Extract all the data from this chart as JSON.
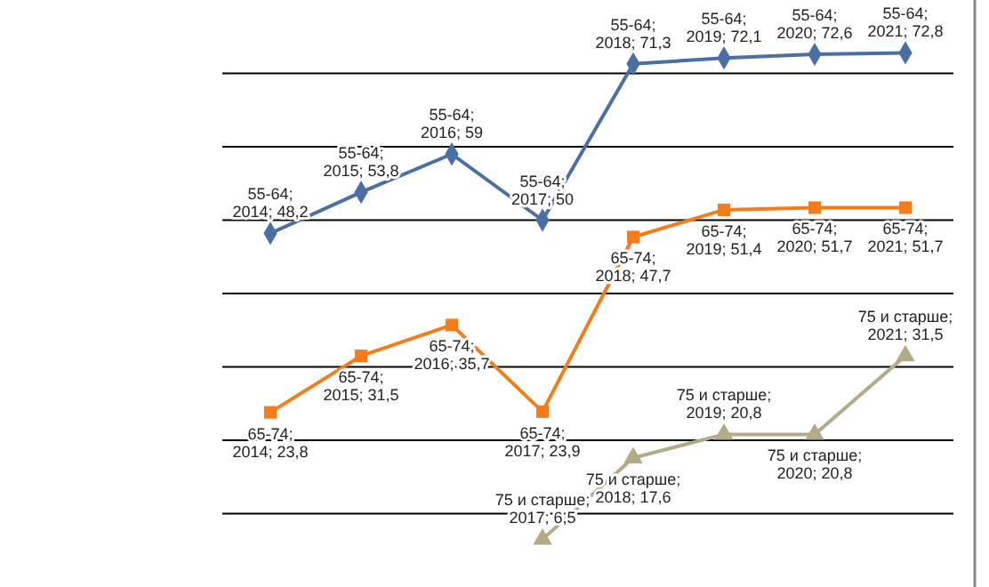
{
  "chart_data": {
    "type": "line",
    "categories": [
      null,
      null,
      null,
      null,
      null,
      null,
      null,
      null
    ],
    "series": [
      {
        "color": "#4a6fa5",
        "marker": "diamond",
        "values": [
          48.2,
          53.8,
          59,
          50,
          71.3,
          72.1,
          72.6,
          72.8
        ],
        "value_labels": [
          "55-64; 2014; 48,2",
          "55-64; 2015; 53,8",
          "55-64; 2016; 59",
          "55-64; 2017; 50",
          "55-64; 2018; 71,3",
          "55-64; 2019; 72,1",
          "55-64; 2020; 72,6",
          "55-64; 2021; 72,8"
        ]
      },
      {
        "color": "#f47d1a",
        "marker": "square",
        "values": [
          23.8,
          31.5,
          35.7,
          23.9,
          47.7,
          51.4,
          51.7,
          51.7
        ],
        "value_labels": [
          "65-74; 2014; 23,8",
          "65-74; 2015; 31,5",
          "65-74; 2016; 35,7",
          "65-74; 2017; 23,9",
          "65-74; 2018; 47,7",
          "65-74; 2019; 51,4",
          "65-74; 2020; 51,7",
          "65-74; 2021; 51,7"
        ]
      },
      {
        "color": "#b3aa88",
        "marker": "triangle",
        "values": [
          null,
          null,
          null,
          6.5,
          17.6,
          20.8,
          20.8,
          31.5
        ],
        "value_labels": [
          null,
          null,
          null,
          "75 и старше; 2017; 6,5",
          "75 и старше; 2018; 17,6",
          "75 и старше; 2019; 20,8",
          "75 и старше; 2020; 20,8",
          "75 и старше; 2021; 31,5"
        ]
      }
    ],
    "ylim": [
      0,
      80
    ],
    "yticks": [
      {
        "value": 10,
        "label": null
      },
      {
        "value": 20,
        "label": null
      },
      {
        "value": 30,
        "label": null
      },
      {
        "value": 40,
        "label": null
      },
      {
        "value": 50,
        "label": null
      },
      {
        "value": 60,
        "label": null
      },
      {
        "value": 70,
        "label": null
      }
    ],
    "grid": "y",
    "line_style": "solid"
  }
}
